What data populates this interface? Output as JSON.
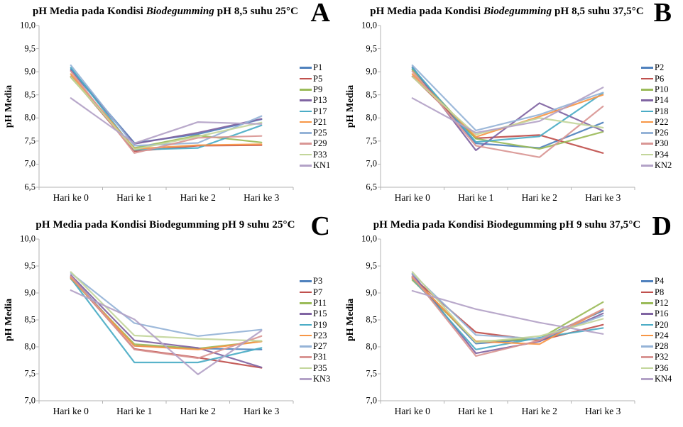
{
  "page": {
    "background": "#ffffff",
    "text_color": "#000000",
    "axis_color": "#b3b3b3"
  },
  "ylabel": "pH Media",
  "chart_data": [
    {
      "type": "line",
      "panel_label": "A",
      "title_prefix": "pH Media pada Kondisi ",
      "title_emphasis": "Biodegumming",
      "title_emphasis_italic": true,
      "title_suffix": " pH 8,5 suhu 25°C",
      "ylabel": "pH Media",
      "categories": [
        "Hari ke 0",
        "Hari ke 1",
        "Hari ke 2",
        "Hari ke 3"
      ],
      "ylim": [
        6.5,
        10.0
      ],
      "yticks": [
        "10,0",
        "9,5",
        "9,0",
        "8,5",
        "8,0",
        "7,5",
        "7,0",
        "6,5"
      ],
      "grid": false,
      "legend_position": "right",
      "series": [
        {
          "name": "P1",
          "color": "#4F81BD",
          "values": [
            9.06,
            7.46,
            7.65,
            7.97
          ]
        },
        {
          "name": "P5",
          "color": "#C0504D",
          "values": [
            8.9,
            7.28,
            7.4,
            7.41
          ]
        },
        {
          "name": "P9",
          "color": "#9BBB59",
          "values": [
            8.88,
            7.35,
            7.62,
            7.47
          ]
        },
        {
          "name": "P13",
          "color": "#8064A2",
          "values": [
            9.03,
            7.44,
            7.68,
            7.98
          ]
        },
        {
          "name": "P17",
          "color": "#4BACC6",
          "values": [
            9.09,
            7.31,
            7.35,
            7.84
          ]
        },
        {
          "name": "P21",
          "color": "#F79646",
          "values": [
            8.95,
            7.33,
            7.41,
            7.43
          ]
        },
        {
          "name": "P25",
          "color": "#95B3D7",
          "values": [
            9.14,
            7.4,
            7.46,
            8.04
          ]
        },
        {
          "name": "P29",
          "color": "#D99694",
          "values": [
            9.01,
            7.24,
            7.57,
            7.61
          ]
        },
        {
          "name": "P33",
          "color": "#C3D69B",
          "values": [
            8.89,
            7.32,
            7.6,
            7.9
          ]
        },
        {
          "name": "KN1",
          "color": "#B3A2C7",
          "values": [
            8.43,
            7.45,
            7.91,
            7.87
          ]
        }
      ]
    },
    {
      "type": "line",
      "panel_label": "B",
      "title_prefix": "pH Media pada Kondisi ",
      "title_emphasis": "Biodegumming",
      "title_emphasis_italic": true,
      "title_suffix": " pH 8,5 suhu 37,5°C",
      "ylabel": "pH Media",
      "categories": [
        "Hari ke 0",
        "Hari ke 1",
        "Hari ke 2",
        "Hari ke 3"
      ],
      "ylim": [
        6.5,
        10.0
      ],
      "yticks": [
        "10,0",
        "9,5",
        "9,0",
        "8,5",
        "8,0",
        "7,5",
        "7,0",
        "6,5"
      ],
      "grid": false,
      "legend_position": "right",
      "series": [
        {
          "name": "P2",
          "color": "#4F81BD",
          "values": [
            9.06,
            7.45,
            7.35,
            7.9
          ]
        },
        {
          "name": "P6",
          "color": "#C0504D",
          "values": [
            8.9,
            7.56,
            7.63,
            7.24
          ]
        },
        {
          "name": "P10",
          "color": "#9BBB59",
          "values": [
            9.04,
            7.55,
            7.33,
            7.7
          ]
        },
        {
          "name": "P14",
          "color": "#8064A2",
          "values": [
            9.1,
            7.3,
            8.32,
            7.72
          ]
        },
        {
          "name": "P18",
          "color": "#4BACC6",
          "values": [
            9.09,
            7.48,
            7.6,
            8.54
          ]
        },
        {
          "name": "P22",
          "color": "#F79646",
          "values": [
            8.95,
            7.59,
            8.03,
            8.5
          ]
        },
        {
          "name": "P26",
          "color": "#95B3D7",
          "values": [
            9.14,
            7.73,
            8.07,
            8.55
          ]
        },
        {
          "name": "P30",
          "color": "#D99694",
          "values": [
            9.01,
            7.4,
            7.15,
            8.25
          ]
        },
        {
          "name": "P34",
          "color": "#C3D69B",
          "values": [
            8.89,
            7.64,
            8.0,
            7.79
          ]
        },
        {
          "name": "KN2",
          "color": "#B3A2C7",
          "values": [
            8.43,
            7.68,
            7.93,
            8.66
          ]
        }
      ]
    },
    {
      "type": "line",
      "panel_label": "C",
      "title_prefix": "pH Media pada Kondisi ",
      "title_emphasis": "Biodegumming",
      "title_emphasis_italic": false,
      "title_suffix": " pH 9 suhu 25°C",
      "ylabel": "pH Media",
      "categories": [
        "Hari ke 0",
        "Hari ke 1",
        "Hari ke 2",
        "Hari ke 3"
      ],
      "ylim": [
        7.0,
        10.0
      ],
      "yticks": [
        "10,0",
        "9,5",
        "9,0",
        "8,5",
        "8,0",
        "7,5",
        "7,0"
      ],
      "grid": false,
      "legend_position": "right",
      "series": [
        {
          "name": "P3",
          "color": "#4F81BD",
          "values": [
            9.3,
            8.02,
            7.97,
            7.95
          ]
        },
        {
          "name": "P7",
          "color": "#C0504D",
          "values": [
            9.29,
            7.96,
            7.8,
            7.61
          ]
        },
        {
          "name": "P11",
          "color": "#9BBB59",
          "values": [
            9.26,
            8.05,
            7.97,
            8.1
          ]
        },
        {
          "name": "P15",
          "color": "#8064A2",
          "values": [
            9.33,
            8.12,
            7.98,
            7.62
          ]
        },
        {
          "name": "P19",
          "color": "#4BACC6",
          "values": [
            9.27,
            7.71,
            7.71,
            7.98
          ]
        },
        {
          "name": "P23",
          "color": "#F79646",
          "values": [
            9.28,
            8.02,
            7.95,
            8.1
          ]
        },
        {
          "name": "P27",
          "color": "#95B3D7",
          "values": [
            9.37,
            8.44,
            8.2,
            8.32
          ]
        },
        {
          "name": "P31",
          "color": "#D99694",
          "values": [
            9.31,
            7.95,
            7.79,
            8.2
          ]
        },
        {
          "name": "P35",
          "color": "#C3D69B",
          "values": [
            9.39,
            8.21,
            8.15,
            8.11
          ]
        },
        {
          "name": "KN3",
          "color": "#B3A2C7",
          "values": [
            9.05,
            8.51,
            7.49,
            8.3
          ]
        }
      ]
    },
    {
      "type": "line",
      "panel_label": "D",
      "title_prefix": "pH Media pada Kondisi ",
      "title_emphasis": "Biodegumming",
      "title_emphasis_italic": false,
      "title_suffix": " pH 9 suhu 37,5°C",
      "ylabel": "pH Media",
      "categories": [
        "Hari ke 0",
        "Hari ke 1",
        "Hari ke 2",
        "Hari ke 3"
      ],
      "ylim": [
        7.0,
        10.0
      ],
      "yticks": [
        "10,0",
        "9,5",
        "9,0",
        "8,5",
        "8,0",
        "7,5",
        "7,0"
      ],
      "grid": false,
      "legend_position": "right",
      "series": [
        {
          "name": "P4",
          "color": "#4F81BD",
          "values": [
            9.3,
            8.06,
            8.15,
            8.67
          ]
        },
        {
          "name": "P8",
          "color": "#C0504D",
          "values": [
            9.29,
            8.27,
            8.12,
            8.41
          ]
        },
        {
          "name": "P12",
          "color": "#9BBB59",
          "values": [
            9.24,
            8.1,
            8.15,
            8.83
          ]
        },
        {
          "name": "P16",
          "color": "#8064A2",
          "values": [
            9.35,
            7.88,
            8.1,
            8.62
          ]
        },
        {
          "name": "P20",
          "color": "#4BACC6",
          "values": [
            9.27,
            7.95,
            8.17,
            8.35
          ]
        },
        {
          "name": "P24",
          "color": "#F79646",
          "values": [
            9.28,
            8.1,
            8.05,
            8.7
          ]
        },
        {
          "name": "P28",
          "color": "#95B3D7",
          "values": [
            9.36,
            8.22,
            8.15,
            8.58
          ]
        },
        {
          "name": "P32",
          "color": "#D99694",
          "values": [
            9.31,
            7.83,
            8.12,
            8.7
          ]
        },
        {
          "name": "P36",
          "color": "#C3D69B",
          "values": [
            9.39,
            8.08,
            8.2,
            8.52
          ]
        },
        {
          "name": "KN4",
          "color": "#B3A2C7",
          "values": [
            9.04,
            8.7,
            8.45,
            8.24
          ]
        }
      ]
    }
  ]
}
